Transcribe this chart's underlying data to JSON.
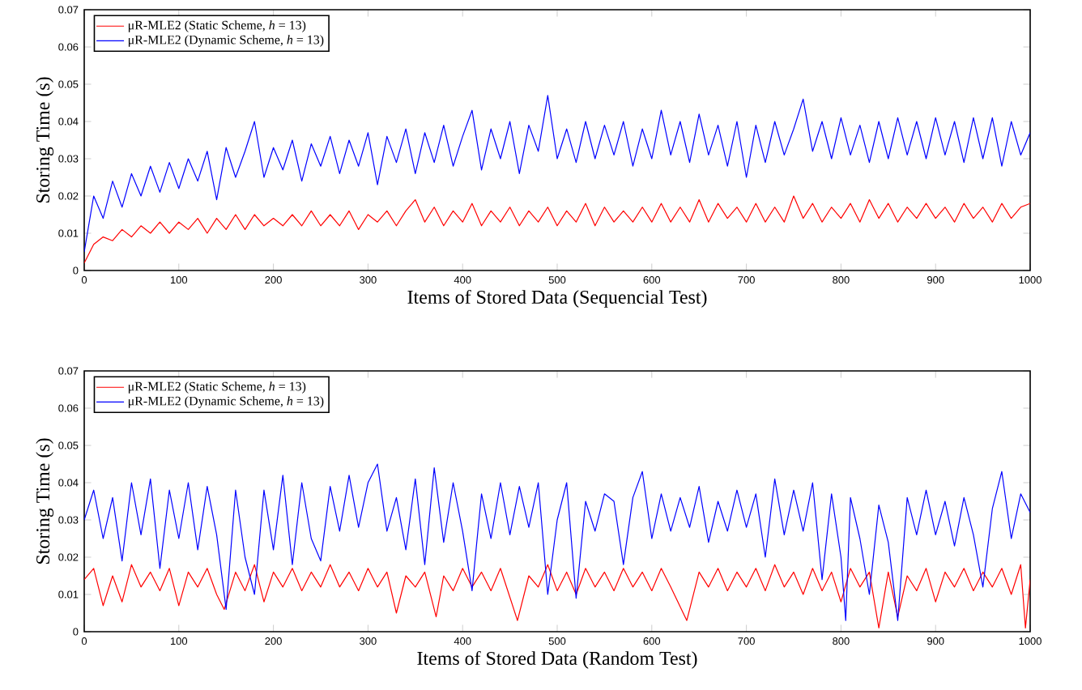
{
  "chart_data": [
    {
      "type": "line",
      "xlabel": "Items of Stored Data (Sequencial Test)",
      "ylabel": "Storing Time (s)",
      "xlim": [
        0,
        1000
      ],
      "ylim": [
        0,
        0.07
      ],
      "xticks": [
        0,
        100,
        200,
        300,
        400,
        500,
        600,
        700,
        800,
        900,
        1000
      ],
      "yticks": [
        0,
        0.01,
        0.02,
        0.03,
        0.04,
        0.05,
        0.06,
        0.07
      ],
      "legend": "top left",
      "grid": false,
      "series": [
        {
          "name": "μR-MLE2 (Static Scheme, *h* = 13)",
          "color": "#ff0000",
          "x": [
            0,
            10,
            20,
            30,
            40,
            50,
            60,
            70,
            80,
            90,
            100,
            110,
            120,
            130,
            140,
            150,
            160,
            170,
            180,
            190,
            200,
            210,
            220,
            230,
            240,
            250,
            260,
            270,
            280,
            290,
            300,
            310,
            320,
            330,
            340,
            350,
            360,
            370,
            380,
            390,
            400,
            410,
            420,
            430,
            440,
            450,
            460,
            470,
            480,
            490,
            500,
            510,
            520,
            530,
            540,
            550,
            560,
            570,
            580,
            590,
            600,
            610,
            620,
            630,
            640,
            650,
            660,
            670,
            680,
            690,
            700,
            710,
            720,
            730,
            740,
            750,
            760,
            770,
            780,
            790,
            800,
            810,
            820,
            830,
            840,
            850,
            860,
            870,
            880,
            890,
            900,
            910,
            920,
            930,
            940,
            950,
            960,
            970,
            980,
            990,
            1000
          ],
          "values": [
            0.002,
            0.007,
            0.009,
            0.008,
            0.011,
            0.009,
            0.012,
            0.01,
            0.013,
            0.01,
            0.013,
            0.011,
            0.014,
            0.01,
            0.014,
            0.011,
            0.015,
            0.011,
            0.015,
            0.012,
            0.014,
            0.012,
            0.015,
            0.012,
            0.016,
            0.012,
            0.015,
            0.012,
            0.016,
            0.011,
            0.015,
            0.013,
            0.016,
            0.012,
            0.016,
            0.019,
            0.013,
            0.017,
            0.012,
            0.016,
            0.013,
            0.018,
            0.012,
            0.016,
            0.013,
            0.017,
            0.012,
            0.016,
            0.013,
            0.017,
            0.012,
            0.016,
            0.013,
            0.018,
            0.012,
            0.017,
            0.013,
            0.016,
            0.013,
            0.017,
            0.013,
            0.018,
            0.013,
            0.017,
            0.013,
            0.019,
            0.013,
            0.018,
            0.014,
            0.017,
            0.013,
            0.018,
            0.013,
            0.017,
            0.013,
            0.02,
            0.014,
            0.018,
            0.013,
            0.017,
            0.014,
            0.018,
            0.013,
            0.019,
            0.014,
            0.018,
            0.013,
            0.017,
            0.014,
            0.018,
            0.014,
            0.017,
            0.013,
            0.018,
            0.014,
            0.017,
            0.013,
            0.018,
            0.014,
            0.017,
            0.018
          ]
        },
        {
          "name": "μR-MLE2 (Dynamic Scheme, *h* = 13)",
          "color": "#0000ff",
          "x": [
            0,
            10,
            20,
            30,
            40,
            50,
            60,
            70,
            80,
            90,
            100,
            110,
            120,
            130,
            140,
            150,
            160,
            170,
            180,
            190,
            200,
            210,
            220,
            230,
            240,
            250,
            260,
            270,
            280,
            290,
            300,
            310,
            320,
            330,
            340,
            350,
            360,
            370,
            380,
            390,
            400,
            410,
            420,
            430,
            440,
            450,
            460,
            470,
            480,
            490,
            500,
            510,
            520,
            530,
            540,
            550,
            560,
            570,
            580,
            590,
            600,
            610,
            620,
            630,
            640,
            650,
            660,
            670,
            680,
            690,
            700,
            710,
            720,
            730,
            740,
            750,
            760,
            770,
            780,
            790,
            800,
            810,
            820,
            830,
            840,
            850,
            860,
            870,
            880,
            890,
            900,
            910,
            920,
            930,
            940,
            950,
            960,
            970,
            980,
            990,
            1000
          ],
          "values": [
            0.005,
            0.02,
            0.014,
            0.024,
            0.017,
            0.026,
            0.02,
            0.028,
            0.021,
            0.029,
            0.022,
            0.03,
            0.024,
            0.032,
            0.019,
            0.033,
            0.025,
            0.032,
            0.04,
            0.025,
            0.033,
            0.027,
            0.035,
            0.024,
            0.034,
            0.028,
            0.036,
            0.026,
            0.035,
            0.028,
            0.037,
            0.023,
            0.036,
            0.029,
            0.038,
            0.026,
            0.037,
            0.029,
            0.039,
            0.028,
            0.036,
            0.043,
            0.027,
            0.038,
            0.03,
            0.04,
            0.026,
            0.039,
            0.032,
            0.047,
            0.03,
            0.038,
            0.029,
            0.04,
            0.03,
            0.039,
            0.031,
            0.04,
            0.028,
            0.038,
            0.03,
            0.043,
            0.031,
            0.04,
            0.029,
            0.042,
            0.031,
            0.039,
            0.028,
            0.04,
            0.025,
            0.039,
            0.029,
            0.04,
            0.031,
            0.038,
            0.046,
            0.032,
            0.04,
            0.03,
            0.041,
            0.031,
            0.039,
            0.029,
            0.04,
            0.03,
            0.041,
            0.031,
            0.04,
            0.03,
            0.041,
            0.031,
            0.04,
            0.029,
            0.041,
            0.03,
            0.041,
            0.028,
            0.04,
            0.031,
            0.037
          ]
        }
      ]
    },
    {
      "type": "line",
      "xlabel": "Items of Stored Data (Random Test)",
      "ylabel": "Storing Time (s)",
      "xlim": [
        0,
        1000
      ],
      "ylim": [
        0,
        0.07
      ],
      "xticks": [
        0,
        100,
        200,
        300,
        400,
        500,
        600,
        700,
        800,
        900,
        1000
      ],
      "yticks": [
        0,
        0.01,
        0.02,
        0.03,
        0.04,
        0.05,
        0.06,
        0.07
      ],
      "legend": "top left",
      "grid": false,
      "series": [
        {
          "name": "μR-MLE2 (Static Scheme, *h* = 13)",
          "color": "#ff0000",
          "x": [
            0,
            10,
            20,
            30,
            40,
            50,
            60,
            70,
            80,
            90,
            100,
            110,
            120,
            130,
            140,
            148,
            160,
            170,
            180,
            190,
            200,
            210,
            220,
            230,
            240,
            250,
            260,
            270,
            280,
            290,
            300,
            310,
            320,
            330,
            340,
            350,
            360,
            372,
            380,
            390,
            400,
            410,
            420,
            430,
            440,
            458,
            470,
            480,
            490,
            500,
            510,
            520,
            530,
            540,
            550,
            560,
            570,
            580,
            590,
            600,
            610,
            620,
            637,
            650,
            660,
            670,
            680,
            690,
            700,
            710,
            720,
            730,
            740,
            750,
            760,
            770,
            780,
            790,
            800,
            810,
            820,
            830,
            840,
            850,
            860,
            870,
            880,
            890,
            900,
            910,
            920,
            930,
            940,
            950,
            960,
            970,
            980,
            990,
            995,
            1000
          ],
          "values": [
            0.014,
            0.017,
            0.007,
            0.015,
            0.008,
            0.018,
            0.012,
            0.016,
            0.011,
            0.017,
            0.007,
            0.016,
            0.012,
            0.017,
            0.01,
            0.006,
            0.016,
            0.011,
            0.018,
            0.008,
            0.016,
            0.012,
            0.017,
            0.011,
            0.016,
            0.012,
            0.018,
            0.012,
            0.016,
            0.011,
            0.017,
            0.012,
            0.016,
            0.005,
            0.015,
            0.012,
            0.016,
            0.004,
            0.015,
            0.011,
            0.017,
            0.012,
            0.016,
            0.011,
            0.017,
            0.003,
            0.015,
            0.012,
            0.018,
            0.011,
            0.016,
            0.01,
            0.017,
            0.012,
            0.016,
            0.011,
            0.017,
            0.012,
            0.016,
            0.011,
            0.017,
            0.012,
            0.003,
            0.016,
            0.012,
            0.017,
            0.011,
            0.016,
            0.012,
            0.017,
            0.011,
            0.018,
            0.012,
            0.016,
            0.01,
            0.017,
            0.011,
            0.016,
            0.008,
            0.017,
            0.012,
            0.016,
            0.001,
            0.016,
            0.004,
            0.015,
            0.011,
            0.017,
            0.008,
            0.016,
            0.012,
            0.017,
            0.011,
            0.016,
            0.012,
            0.017,
            0.01,
            0.018,
            0.001,
            0.014
          ]
        },
        {
          "name": "μR-MLE2 (Dynamic Scheme, *h* = 13)",
          "color": "#0000ff",
          "x": [
            0,
            10,
            20,
            30,
            40,
            50,
            60,
            70,
            80,
            90,
            100,
            110,
            120,
            130,
            140,
            150,
            160,
            170,
            180,
            190,
            200,
            210,
            220,
            230,
            240,
            250,
            260,
            270,
            280,
            290,
            300,
            310,
            320,
            330,
            340,
            350,
            360,
            370,
            380,
            390,
            400,
            410,
            420,
            430,
            440,
            450,
            460,
            470,
            480,
            490,
            500,
            510,
            520,
            530,
            540,
            550,
            560,
            570,
            580,
            590,
            600,
            610,
            620,
            630,
            640,
            650,
            660,
            670,
            680,
            690,
            700,
            710,
            720,
            730,
            740,
            750,
            760,
            770,
            780,
            790,
            800,
            805,
            810,
            820,
            830,
            840,
            850,
            860,
            870,
            880,
            890,
            900,
            910,
            920,
            930,
            940,
            950,
            960,
            970,
            980,
            990,
            1000
          ],
          "values": [
            0.03,
            0.038,
            0.025,
            0.036,
            0.019,
            0.04,
            0.026,
            0.041,
            0.017,
            0.038,
            0.025,
            0.04,
            0.022,
            0.039,
            0.026,
            0.006,
            0.038,
            0.02,
            0.01,
            0.038,
            0.022,
            0.042,
            0.018,
            0.04,
            0.025,
            0.019,
            0.039,
            0.027,
            0.042,
            0.028,
            0.04,
            0.045,
            0.027,
            0.036,
            0.022,
            0.041,
            0.018,
            0.044,
            0.024,
            0.04,
            0.027,
            0.011,
            0.037,
            0.025,
            0.04,
            0.026,
            0.039,
            0.028,
            0.04,
            0.01,
            0.03,
            0.04,
            0.009,
            0.035,
            0.027,
            0.037,
            0.035,
            0.018,
            0.036,
            0.043,
            0.025,
            0.037,
            0.027,
            0.036,
            0.028,
            0.039,
            0.024,
            0.035,
            0.027,
            0.038,
            0.028,
            0.037,
            0.02,
            0.041,
            0.026,
            0.038,
            0.027,
            0.04,
            0.014,
            0.037,
            0.02,
            0.003,
            0.036,
            0.025,
            0.01,
            0.034,
            0.024,
            0.003,
            0.036,
            0.026,
            0.038,
            0.026,
            0.035,
            0.023,
            0.036,
            0.026,
            0.012,
            0.033,
            0.043,
            0.025,
            0.037,
            0.032
          ]
        }
      ]
    }
  ]
}
